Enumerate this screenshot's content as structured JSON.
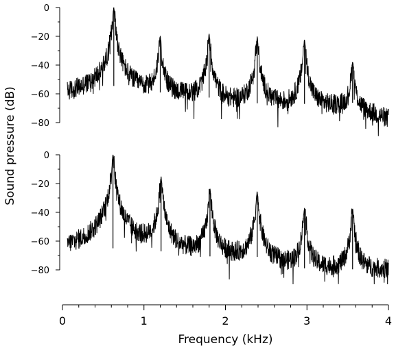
{
  "chart_data": {
    "type": "line",
    "xlabel": "Frequency  (kHz)",
    "ylabel": "Sound pressure  (dB)",
    "xlim": [
      0,
      4
    ],
    "xticks": [
      0,
      1,
      2,
      3,
      4
    ],
    "xtick_labels": [
      "0",
      "1",
      "2",
      "3",
      "4"
    ],
    "x_minor_ticks": [
      0.2,
      0.4,
      0.6,
      0.8,
      1.2,
      1.4,
      1.6,
      1.8,
      2.2,
      2.4,
      2.6,
      2.8,
      3.2,
      3.4,
      3.6,
      3.8
    ],
    "ylim": [
      -90,
      0
    ],
    "yticks": [
      0,
      -20,
      -40,
      -60,
      -80
    ],
    "ytick_labels": [
      "0",
      "-20",
      "-40",
      "-60",
      "-80"
    ],
    "grid": false,
    "line_color": "#000000",
    "panels": [
      {
        "name": "top",
        "peaks": [
          {
            "x": 0.63,
            "y": 0
          },
          {
            "x": 1.2,
            "y": -20
          },
          {
            "x": 1.8,
            "y": -19
          },
          {
            "x": 2.39,
            "y": -21
          },
          {
            "x": 2.97,
            "y": -23
          },
          {
            "x": 3.56,
            "y": -38
          }
        ],
        "floor": [
          {
            "x": 0.06,
            "y": -62
          },
          {
            "x": 0.5,
            "y": -58
          },
          {
            "x": 1.0,
            "y": -64
          },
          {
            "x": 1.5,
            "y": -64
          },
          {
            "x": 2.0,
            "y": -70
          },
          {
            "x": 2.5,
            "y": -72
          },
          {
            "x": 3.0,
            "y": -72
          },
          {
            "x": 3.5,
            "y": -70
          },
          {
            "x": 4.0,
            "y": -80
          }
        ]
      },
      {
        "name": "bottom",
        "peaks": [
          {
            "x": 0.62,
            "y": 0
          },
          {
            "x": 1.21,
            "y": -16
          },
          {
            "x": 1.81,
            "y": -24
          },
          {
            "x": 2.39,
            "y": -26
          },
          {
            "x": 2.97,
            "y": -37
          },
          {
            "x": 3.56,
            "y": -38
          }
        ],
        "floor": [
          {
            "x": 0.06,
            "y": -69
          },
          {
            "x": 0.5,
            "y": -70
          },
          {
            "x": 1.0,
            "y": -70
          },
          {
            "x": 1.5,
            "y": -75
          },
          {
            "x": 2.0,
            "y": -76
          },
          {
            "x": 2.4,
            "y": -76
          },
          {
            "x": 2.5,
            "y": -82
          },
          {
            "x": 3.0,
            "y": -84
          },
          {
            "x": 3.5,
            "y": -85
          },
          {
            "x": 4.0,
            "y": -82
          }
        ]
      }
    ]
  }
}
